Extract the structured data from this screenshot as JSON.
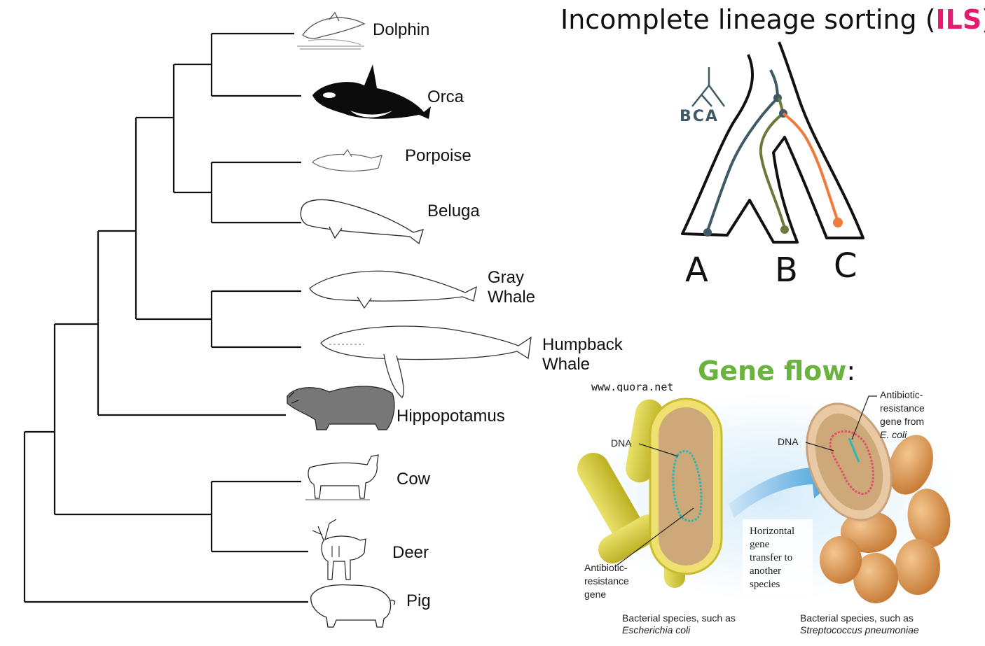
{
  "tree": {
    "taxa": [
      {
        "key": "dolphin",
        "label": "Dolphin"
      },
      {
        "key": "orca",
        "label": "Orca"
      },
      {
        "key": "porpoise",
        "label": "Porpoise"
      },
      {
        "key": "beluga",
        "label": "Beluga"
      },
      {
        "key": "gray_whale",
        "label": "Gray Whale",
        "lines": [
          "Gray",
          "Whale"
        ]
      },
      {
        "key": "humpback",
        "label": "Humpback Whale",
        "lines": [
          "Humpback",
          "Whale"
        ]
      },
      {
        "key": "hippo",
        "label": "Hippopotamus"
      },
      {
        "key": "cow",
        "label": "Cow"
      },
      {
        "key": "deer",
        "label": "Deer"
      },
      {
        "key": "pig",
        "label": "Pig"
      }
    ]
  },
  "ils": {
    "title_prefix": "Incomplete lineage sorting (",
    "title_highlight": "ILS",
    "title_suffix": "):",
    "species_tree_labels": "BCA",
    "tip_labels": [
      "A",
      "B",
      "C"
    ],
    "colors": {
      "highlight": "#e6196e",
      "lineage_a": "#3f5a66",
      "lineage_b": "#6b7a3a",
      "lineage_c": "#f07a3c",
      "outline": "#111111"
    }
  },
  "gene_flow": {
    "title": "Gene flow",
    "title_suffix": ":",
    "watermark": "www.quora.net",
    "dna_left": "DNA",
    "dna_right": "DNA",
    "resistance_left": [
      "Antibiotic-",
      "resistance",
      "gene"
    ],
    "resistance_right": [
      "Antibiotic-",
      "resistance",
      "gene from"
    ],
    "resistance_right_italic": "E. coli",
    "transfer_box": [
      "Horizontal",
      "gene",
      "transfer to",
      "another",
      "species"
    ],
    "caption_left": "Bacterial species, such as",
    "caption_left_italic": "Escherichia coli",
    "caption_right": "Bacterial species, such as",
    "caption_right_italic": "Streptococcus pneumoniae",
    "colors": {
      "title": "#6ab33e",
      "arrow": "#3a9ad9",
      "rod_outline": "#e8d84a",
      "rod_fill": "#c9a878",
      "coccus": "#d99a52",
      "plasmid_left": "#2bb7b3",
      "plasmid_right": "#e0506a"
    }
  }
}
